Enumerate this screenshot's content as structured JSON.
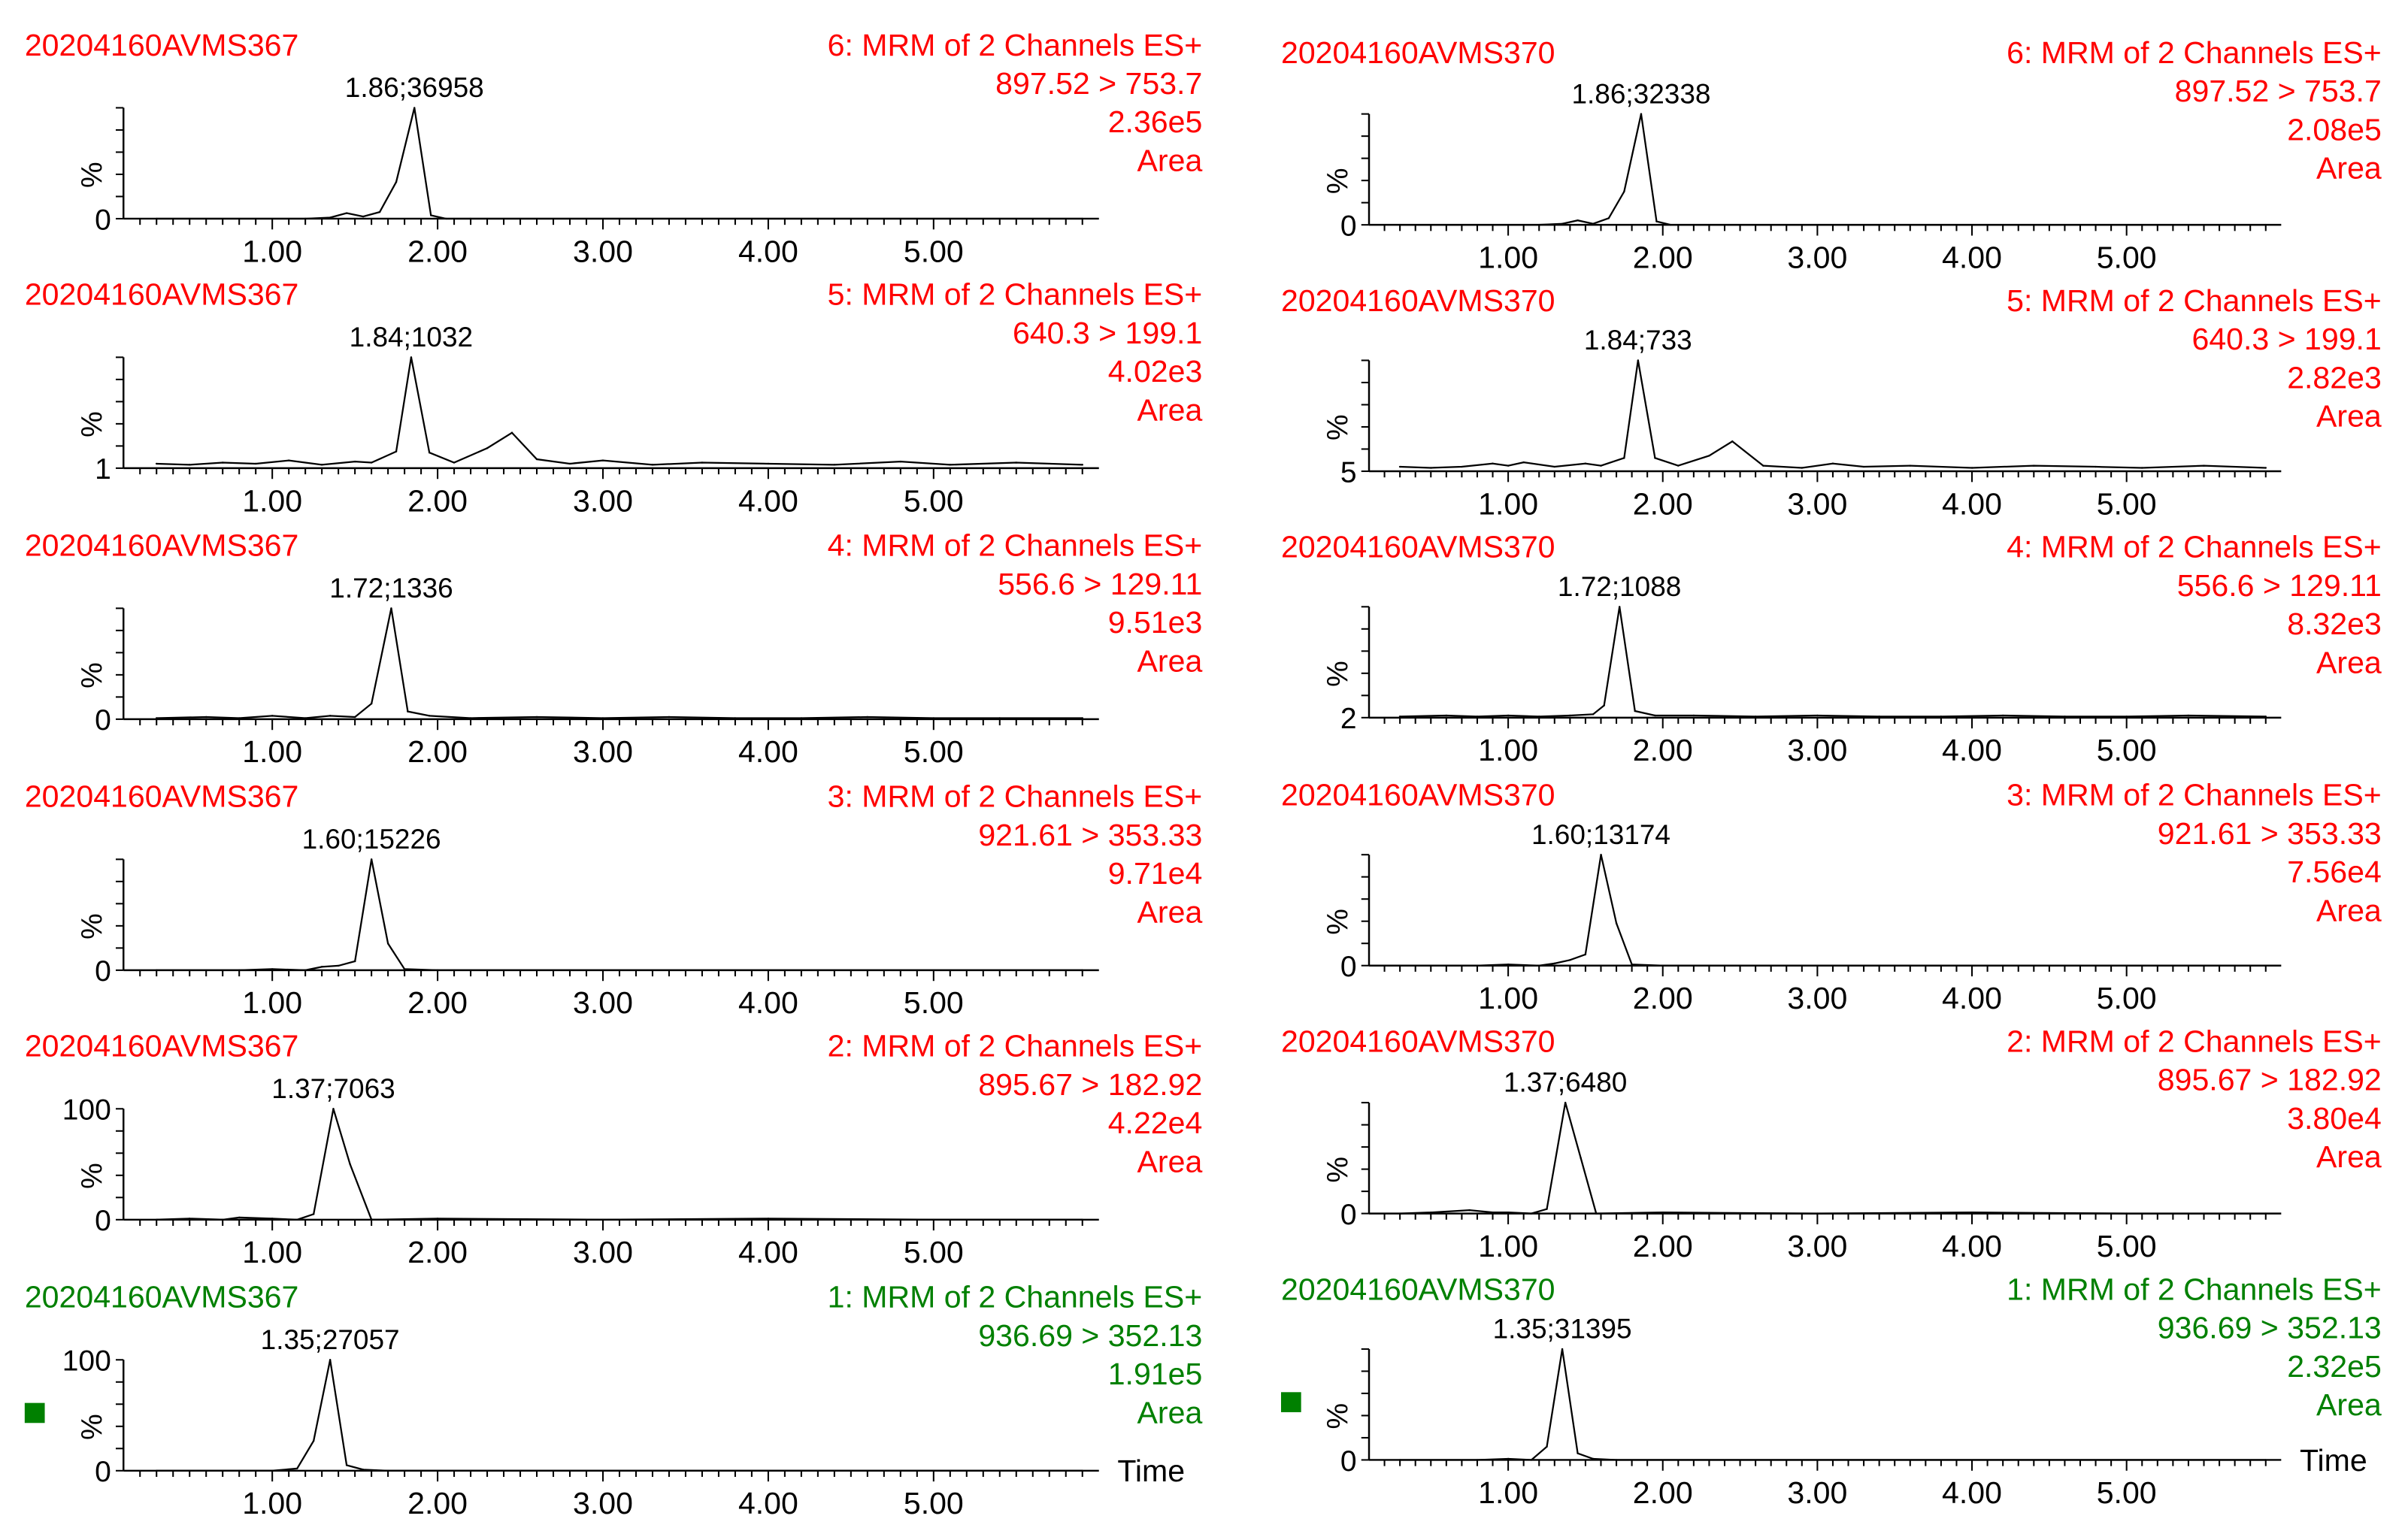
{
  "colors": {
    "red": "#ff0000",
    "green": "#008000",
    "trace": "#000000"
  },
  "time_label": "Time",
  "percent_label": "%",
  "x_ticks": [
    "1.00",
    "2.00",
    "3.00",
    "4.00",
    "5.00"
  ],
  "chart_data": [
    {
      "type": "line",
      "column": "left",
      "color": "red",
      "sample": "20204160AVMS367",
      "channel": "6: MRM of 2 Channels ES+",
      "transition": "897.52 > 753.7",
      "intensity": "2.36e5",
      "mode": "Area",
      "peak_label": "1.86;36958",
      "peak_rt": 1.86,
      "ytick_top": "",
      "ytick_bottom": "0",
      "xlim": [
        0.1,
        6.0
      ],
      "ylim": [
        0,
        100
      ],
      "xlabel": "",
      "ylabel": "%",
      "x": [
        0.3,
        1.2,
        1.35,
        1.45,
        1.55,
        1.65,
        1.75,
        1.86,
        1.96,
        2.05,
        2.2,
        5.9
      ],
      "y": [
        0,
        0,
        1,
        5,
        2,
        6,
        33,
        100,
        3,
        0,
        0,
        0
      ]
    },
    {
      "type": "line",
      "column": "left",
      "color": "red",
      "sample": "20204160AVMS367",
      "channel": "5: MRM of 2 Channels ES+",
      "transition": "640.3 > 199.1",
      "intensity": "4.02e3",
      "mode": "Area",
      "peak_label": "1.84;1032",
      "peak_rt": 1.84,
      "ytick_top": "",
      "ytick_bottom": "1",
      "xlim": [
        0.1,
        6.0
      ],
      "ylim": [
        0,
        100
      ],
      "xlabel": "",
      "ylabel": "%",
      "x": [
        0.3,
        0.5,
        0.7,
        0.9,
        1.1,
        1.3,
        1.5,
        1.6,
        1.75,
        1.84,
        1.95,
        2.1,
        2.3,
        2.45,
        2.6,
        2.8,
        3.0,
        3.3,
        3.6,
        4.0,
        4.4,
        4.8,
        5.1,
        5.5,
        5.9
      ],
      "y": [
        4,
        3,
        5,
        4,
        7,
        3,
        6,
        5,
        15,
        100,
        14,
        5,
        18,
        32,
        8,
        4,
        7,
        3,
        5,
        4,
        3,
        6,
        3,
        5,
        3
      ]
    },
    {
      "type": "line",
      "column": "left",
      "color": "red",
      "sample": "20204160AVMS367",
      "channel": "4: MRM of 2 Channels ES+",
      "transition": "556.6 > 129.11",
      "intensity": "9.51e3",
      "mode": "Area",
      "peak_label": "1.72;1336",
      "peak_rt": 1.72,
      "ytick_top": "",
      "ytick_bottom": "0",
      "xlim": [
        0.1,
        6.0
      ],
      "ylim": [
        0,
        100
      ],
      "xlabel": "",
      "ylabel": "%",
      "x": [
        0.3,
        0.6,
        0.8,
        1.0,
        1.2,
        1.35,
        1.5,
        1.6,
        1.72,
        1.82,
        1.95,
        2.2,
        2.6,
        3.0,
        3.4,
        3.8,
        4.2,
        4.6,
        5.0,
        5.4,
        5.9
      ],
      "y": [
        1,
        2,
        1,
        3,
        1,
        3,
        2,
        14,
        100,
        7,
        3,
        1,
        2,
        1,
        2,
        1,
        1,
        2,
        1,
        1,
        1
      ]
    },
    {
      "type": "line",
      "column": "left",
      "color": "red",
      "sample": "20204160AVMS367",
      "channel": "3: MRM of 2 Channels ES+",
      "transition": "921.61 > 353.33",
      "intensity": "9.71e4",
      "mode": "Area",
      "peak_label": "1.60;15226",
      "peak_rt": 1.6,
      "ytick_top": "",
      "ytick_bottom": "0",
      "xlim": [
        0.1,
        6.0
      ],
      "ylim": [
        0,
        100
      ],
      "xlabel": "",
      "ylabel": "%",
      "x": [
        0.3,
        0.8,
        1.0,
        1.2,
        1.3,
        1.4,
        1.5,
        1.6,
        1.7,
        1.8,
        2.0,
        5.9
      ],
      "y": [
        0,
        0,
        1,
        0,
        3,
        4,
        8,
        100,
        24,
        1,
        0,
        0
      ]
    },
    {
      "type": "line",
      "column": "left",
      "color": "red",
      "sample": "20204160AVMS367",
      "channel": "2: MRM of 2 Channels ES+",
      "transition": "895.67 > 182.92",
      "intensity": "4.22e4",
      "mode": "Area",
      "peak_label": "1.37;7063",
      "peak_rt": 1.37,
      "ytick_top": "100",
      "ytick_bottom": "0",
      "xlim": [
        0.1,
        6.0
      ],
      "ylim": [
        0,
        100
      ],
      "xlabel": "",
      "ylabel": "%",
      "x": [
        0.3,
        0.5,
        0.7,
        0.8,
        1.0,
        1.15,
        1.25,
        1.37,
        1.47,
        1.6,
        2.0,
        3.0,
        4.0,
        5.0,
        5.9
      ],
      "y": [
        0,
        1,
        0,
        2,
        1,
        0,
        5,
        100,
        50,
        0,
        1,
        0,
        1,
        0,
        0
      ]
    },
    {
      "type": "line",
      "column": "left",
      "color": "green",
      "sample": "20204160AVMS367",
      "channel": "1: MRM of 2 Channels ES+",
      "transition": "936.69 > 352.13",
      "intensity": "1.91e5",
      "mode": "Area",
      "peak_label": "1.35;27057",
      "peak_rt": 1.35,
      "ytick_top": "100",
      "ytick_bottom": "0",
      "xlim": [
        0.1,
        6.0
      ],
      "ylim": [
        0,
        100
      ],
      "xlabel": "Time",
      "ylabel": "%",
      "x": [
        0.3,
        0.8,
        1.0,
        1.15,
        1.25,
        1.35,
        1.45,
        1.55,
        1.7,
        5.9
      ],
      "y": [
        0,
        0,
        0,
        2,
        27,
        100,
        5,
        1,
        0,
        0
      ]
    },
    {
      "type": "line",
      "column": "right",
      "color": "red",
      "sample": "20204160AVMS370",
      "channel": "6: MRM of 2 Channels ES+",
      "transition": "897.52 > 753.7",
      "intensity": "2.08e5",
      "mode": "Area",
      "peak_label": "1.86;32338",
      "peak_rt": 1.86,
      "ytick_top": "",
      "ytick_bottom": "0",
      "xlim": [
        0.1,
        6.0
      ],
      "ylim": [
        0,
        100
      ],
      "xlabel": "",
      "ylabel": "%",
      "x": [
        0.3,
        1.2,
        1.35,
        1.45,
        1.55,
        1.65,
        1.75,
        1.86,
        1.96,
        2.05,
        2.2,
        5.9
      ],
      "y": [
        0,
        0,
        1,
        4,
        1,
        6,
        30,
        100,
        3,
        0,
        0,
        0
      ]
    },
    {
      "type": "line",
      "column": "right",
      "color": "red",
      "sample": "20204160AVMS370",
      "channel": "5: MRM of 2 Channels ES+",
      "transition": "640.3 > 199.1",
      "intensity": "2.82e3",
      "mode": "Area",
      "peak_label": "1.84;733",
      "peak_rt": 1.84,
      "ytick_top": "",
      "ytick_bottom": "5",
      "xlim": [
        0.1,
        6.0
      ],
      "ylim": [
        0,
        100
      ],
      "xlabel": "",
      "ylabel": "%",
      "x": [
        0.3,
        0.5,
        0.7,
        0.9,
        1.0,
        1.1,
        1.3,
        1.5,
        1.6,
        1.75,
        1.84,
        1.95,
        2.1,
        2.3,
        2.45,
        2.65,
        2.9,
        3.1,
        3.3,
        3.6,
        4.0,
        4.4,
        4.8,
        5.1,
        5.5,
        5.9
      ],
      "y": [
        4,
        3,
        4,
        7,
        5,
        8,
        4,
        7,
        5,
        12,
        100,
        12,
        5,
        14,
        27,
        5,
        3,
        7,
        4,
        5,
        3,
        5,
        4,
        3,
        5,
        3
      ]
    },
    {
      "type": "line",
      "column": "right",
      "color": "red",
      "sample": "20204160AVMS370",
      "channel": "4: MRM of 2 Channels ES+",
      "transition": "556.6 > 129.11",
      "intensity": "8.32e3",
      "mode": "Area",
      "peak_label": "1.72;1088",
      "peak_rt": 1.72,
      "ytick_top": "",
      "ytick_bottom": "2",
      "xlim": [
        0.1,
        6.0
      ],
      "ylim": [
        0,
        100
      ],
      "xlabel": "",
      "ylabel": "%",
      "x": [
        0.3,
        0.6,
        0.8,
        1.0,
        1.2,
        1.4,
        1.55,
        1.62,
        1.72,
        1.82,
        1.95,
        2.2,
        2.6,
        3.0,
        3.4,
        3.8,
        4.2,
        4.6,
        5.0,
        5.4,
        5.9
      ],
      "y": [
        1,
        2,
        1,
        2,
        1,
        2,
        3,
        11,
        100,
        6,
        2,
        2,
        1,
        2,
        1,
        1,
        2,
        1,
        1,
        2,
        1
      ]
    },
    {
      "type": "line",
      "column": "right",
      "color": "red",
      "sample": "20204160AVMS370",
      "channel": "3: MRM of 2 Channels ES+",
      "transition": "921.61 > 353.33",
      "intensity": "7.56e4",
      "mode": "Area",
      "peak_label": "1.60;13174",
      "peak_rt": 1.6,
      "ytick_top": "",
      "ytick_bottom": "0",
      "xlim": [
        0.1,
        6.0
      ],
      "ylim": [
        0,
        100
      ],
      "xlabel": "",
      "ylabel": "%",
      "x": [
        0.3,
        0.8,
        1.0,
        1.2,
        1.3,
        1.4,
        1.5,
        1.6,
        1.7,
        1.8,
        2.0,
        5.9
      ],
      "y": [
        0,
        0,
        1,
        0,
        2,
        5,
        10,
        100,
        38,
        1,
        0,
        0
      ]
    },
    {
      "type": "line",
      "column": "right",
      "color": "red",
      "sample": "20204160AVMS370",
      "channel": "2: MRM of 2 Channels ES+",
      "transition": "895.67 > 182.92",
      "intensity": "3.80e4",
      "mode": "Area",
      "peak_label": "1.37;6480",
      "peak_rt": 1.37,
      "ytick_top": "",
      "ytick_bottom": "0",
      "xlim": [
        0.1,
        6.0
      ],
      "ylim": [
        0,
        100
      ],
      "xlabel": "",
      "ylabel": "%",
      "x": [
        0.3,
        0.5,
        0.75,
        0.9,
        1.0,
        1.15,
        1.25,
        1.37,
        1.47,
        1.57,
        2.0,
        3.0,
        4.0,
        5.0,
        5.9
      ],
      "y": [
        0,
        1,
        3,
        1,
        1,
        0,
        4,
        100,
        50,
        0,
        1,
        0,
        1,
        0,
        0
      ]
    },
    {
      "type": "line",
      "column": "right",
      "color": "green",
      "sample": "20204160AVMS370",
      "channel": "1: MRM of 2 Channels ES+",
      "transition": "936.69 > 352.13",
      "intensity": "2.32e5",
      "mode": "Area",
      "peak_label": "1.35;31395",
      "peak_rt": 1.35,
      "ytick_top": "",
      "ytick_bottom": "0",
      "xlim": [
        0.1,
        6.0
      ],
      "ylim": [
        0,
        100
      ],
      "xlabel": "Time",
      "ylabel": "%",
      "x": [
        0.3,
        0.8,
        1.0,
        1.15,
        1.25,
        1.35,
        1.45,
        1.55,
        1.7,
        5.9
      ],
      "y": [
        0,
        0,
        1,
        0,
        12,
        100,
        6,
        1,
        0,
        0
      ]
    }
  ]
}
